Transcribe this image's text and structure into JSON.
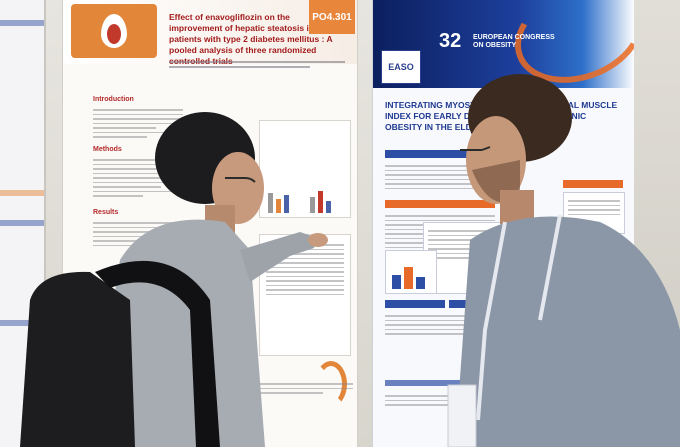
{
  "poster_left_panel": {
    "title": "Effect of enavogliflozin on the improvement of hepatic steatosis in patients with type 2 diabetes mellitus : A pooled analysis of three randomized controlled trials",
    "poster_id": "PO4.301",
    "sections": [
      "Introduction",
      "Methods",
      "Results"
    ],
    "brand_colors": {
      "orange": "#e2863a",
      "red": "#a21b1b"
    }
  },
  "poster_right_panel": {
    "banner": {
      "society": "EASO",
      "edition": "32",
      "congress_name": "EUROPEAN CONGRESS ON OBESITY"
    },
    "title": "INTEGRATING MYOSTEATOSIS AND SKELETAL MUSCLE INDEX FOR EARLY DETECTION OF SARCOPENIC OBESITY IN THE ELDERLY",
    "brand_colors": {
      "navy": "#1f3a93",
      "orange": "#e76a2a"
    }
  }
}
